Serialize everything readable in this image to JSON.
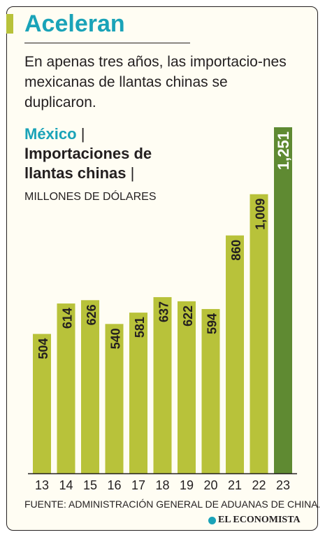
{
  "header": {
    "title": "Aceleran",
    "subtitle": "En apenas tres años, las importacio-nes mexicanas de llantas chinas se duplicaron."
  },
  "chart_label": {
    "country": "México",
    "separator": "|",
    "metric": "Importaciones de llantas chinas",
    "unit": "MILLONES DE DÓLARES"
  },
  "chart_data": {
    "type": "bar",
    "categories": [
      "13",
      "14",
      "15",
      "16",
      "17",
      "18",
      "19",
      "20",
      "21",
      "22",
      "23"
    ],
    "values": [
      504,
      614,
      626,
      540,
      581,
      637,
      622,
      594,
      860,
      1009,
      1251
    ],
    "value_labels": [
      "504",
      "614",
      "626",
      "540",
      "581",
      "637",
      "622",
      "594",
      "860",
      "1,009",
      "1,251"
    ],
    "highlight_index": 10,
    "ylim": [
      0,
      1251
    ],
    "grid": false,
    "colors": {
      "bar": "#b8c23a",
      "highlight": "#5f8a32",
      "baseline": "#231f20"
    }
  },
  "footer": {
    "source": "FUENTE: ADMINISTRACIÓN GENERAL DE ADUANAS DE CHINA.",
    "brand": "EL ECONOMISTA",
    "brand_icon": "el-economista-logo-icon"
  },
  "colors": {
    "accent": "#1aa3b8",
    "background": "#fffdf3",
    "text": "#231f20",
    "bar_light": "#b8c23a"
  }
}
